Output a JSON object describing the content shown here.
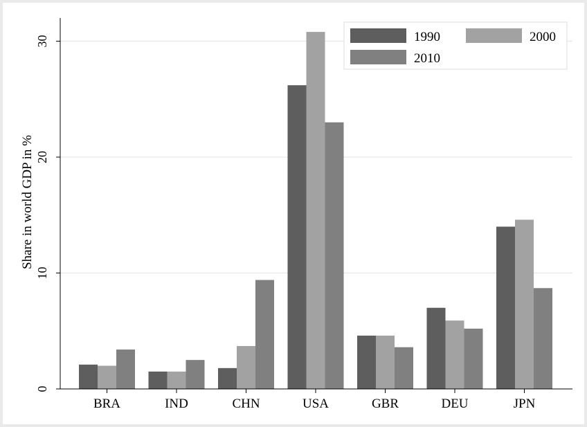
{
  "chart_data": {
    "type": "bar",
    "ylabel": "Share in world GDP in %",
    "xlabel": "",
    "ylim": [
      0,
      32
    ],
    "yticks": [
      0,
      10,
      20,
      30
    ],
    "grid": true,
    "legend_position": "top-right",
    "categories": [
      "BRA",
      "IND",
      "CHN",
      "USA",
      "GBR",
      "DEU",
      "JPN"
    ],
    "series": [
      {
        "name": "1990",
        "color": "#5e5e5e",
        "values": [
          2.1,
          1.5,
          1.8,
          26.2,
          4.6,
          7.0,
          14.0
        ]
      },
      {
        "name": "2000",
        "color": "#a2a2a2",
        "values": [
          2.0,
          1.5,
          3.7,
          30.8,
          4.6,
          5.9,
          14.6
        ]
      },
      {
        "name": "2010",
        "color": "#808080",
        "values": [
          3.4,
          2.5,
          9.4,
          23.0,
          3.6,
          5.2,
          8.7
        ]
      }
    ]
  }
}
